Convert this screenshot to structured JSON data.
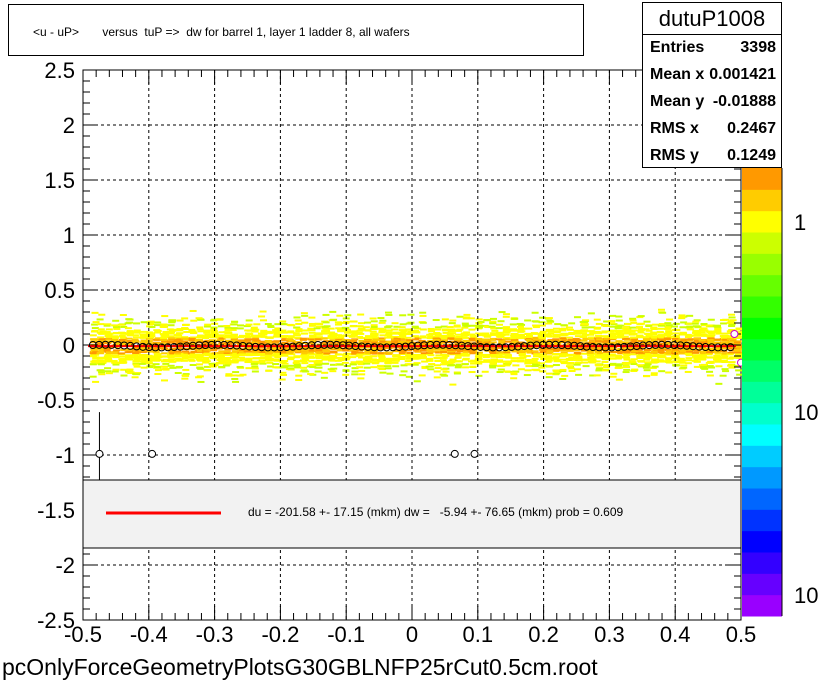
{
  "title": "<u - uP>       versus  tuP =>  dw for barrel 1, layer 1 ladder 8, all wafers",
  "stats": {
    "name": "dutuP1008",
    "rows": [
      {
        "label": "Entries",
        "value": "3398"
      },
      {
        "label": "Mean x",
        "value": "0.001421"
      },
      {
        "label": "Mean y",
        "value": "-0.01888"
      },
      {
        "label": "RMS x",
        "value": "0.2467"
      },
      {
        "label": "RMS y",
        "value": "0.1249"
      }
    ]
  },
  "legend": {
    "text": "du = -201.58 +- 17.15 (mkm) dw =   -5.94 +- 76.65 (mkm) prob = 0.609",
    "line_color": "#ff0000"
  },
  "file_label": "pcOnlyForceGeometryPlotsG30GBLNFP25rCut0.5cm.root",
  "chart_data": {
    "type": "heatmap",
    "xlim": [
      -0.5,
      0.5
    ],
    "ylim": [
      -2.5,
      2.5
    ],
    "x_ticks": [
      "-0.5",
      "-0.4",
      "-0.3",
      "-0.2",
      "-0.1",
      "0",
      "0.1",
      "0.2",
      "0.3",
      "0.4",
      "0.5"
    ],
    "y_ticks": [
      "-2.5",
      "-2",
      "-1.5",
      "-1",
      "-0.5",
      "0",
      "0.5",
      "1",
      "1.5",
      "2",
      "2.5"
    ],
    "grid": true,
    "colorbar_labels": [
      "1",
      "10",
      "10"
    ],
    "fit_line": {
      "color": "#ff0000",
      "y": -0.01
    },
    "profile_points": [
      {
        "x": -0.475,
        "y": -0.99,
        "err": 0.38
      },
      {
        "x": -0.395,
        "y": -0.99
      },
      {
        "x": 0.065,
        "y": -0.99
      },
      {
        "x": 0.095,
        "y": -0.99
      },
      {
        "x": 0.49,
        "y": 0.1
      },
      {
        "x": 0.5,
        "y": -0.16
      }
    ],
    "colorbar_colors": [
      "#9900ff",
      "#6600ff",
      "#3300ff",
      "#0000ff",
      "#0033ff",
      "#0066ff",
      "#0099ff",
      "#00ccff",
      "#00ffff",
      "#00ffcc",
      "#00ff99",
      "#00ff66",
      "#00ff33",
      "#00ff00",
      "#33ff00",
      "#66ff00",
      "#99ff00",
      "#ccff00",
      "#ffff00",
      "#ffcc00",
      "#ff9900"
    ]
  }
}
